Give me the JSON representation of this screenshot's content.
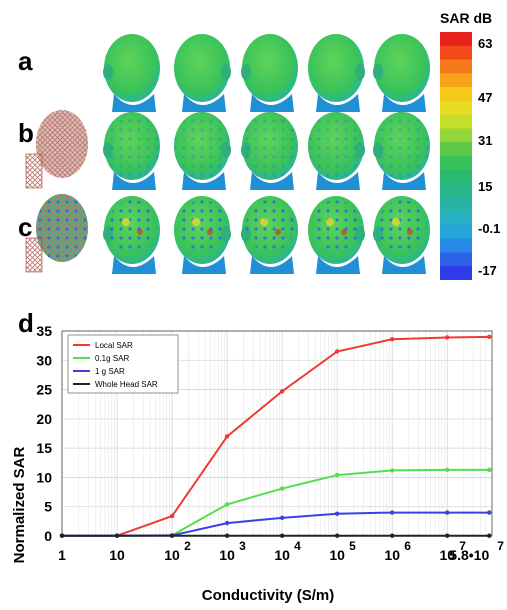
{
  "panels": {
    "a": {
      "letter": "a"
    },
    "b": {
      "letter": "b"
    },
    "c": {
      "letter": "c"
    },
    "d": {
      "letter": "d"
    }
  },
  "colorbar": {
    "title": "SAR dB",
    "ticks": [
      "63",
      "47",
      "31",
      "15",
      "-0.1",
      "-17"
    ],
    "colors": [
      "#e8221b",
      "#f04a18",
      "#f5781a",
      "#f8a21a",
      "#f5c81c",
      "#e6dc22",
      "#c2e02a",
      "#95d63a",
      "#5cc84a",
      "#39c25a",
      "#2ab96e",
      "#26b68a",
      "#27b3a6",
      "#26b0c2",
      "#26a6d8",
      "#2788e6",
      "#2c62ea",
      "#2f3be8"
    ]
  },
  "heads": {
    "base_color": "#39c25a",
    "shadow_color": "#1f8fd6",
    "hotspot_color": "#e8d72a"
  },
  "chart_data": {
    "type": "line",
    "xlabel": "Conductivity (S/m)",
    "ylabel": "Normalized SAR",
    "x_scale": "log",
    "x": [
      1,
      10,
      100,
      1000,
      10000,
      100000,
      1000000,
      10000000,
      58000000
    ],
    "x_tick_labels": [
      {
        "base": "1",
        "exp": ""
      },
      {
        "base": "10",
        "exp": ""
      },
      {
        "base": "10",
        "exp": "2"
      },
      {
        "base": "10",
        "exp": "3"
      },
      {
        "base": "10",
        "exp": "4"
      },
      {
        "base": "10",
        "exp": "5"
      },
      {
        "base": "10",
        "exp": "6"
      },
      {
        "base": "10",
        "exp": "7"
      },
      {
        "base": "5.8•10",
        "exp": "7"
      }
    ],
    "ylim": [
      0,
      35
    ],
    "yticks": [
      0,
      5,
      10,
      15,
      20,
      25,
      30,
      35
    ],
    "grid": true,
    "legend_position": "top-left",
    "series": [
      {
        "name": "Local SAR",
        "color": "#ee3b33",
        "values": [
          0.05,
          0.05,
          3.4,
          17.0,
          24.7,
          31.5,
          33.6,
          33.9,
          34.0
        ]
      },
      {
        "name": "0.1g SAR",
        "color": "#52e04a",
        "values": [
          0.05,
          0.05,
          0.1,
          5.4,
          8.1,
          10.4,
          11.2,
          11.3,
          11.3
        ]
      },
      {
        "name": "1 g SAR",
        "color": "#3f3fe0",
        "values": [
          0.05,
          0.05,
          0.1,
          2.2,
          3.1,
          3.8,
          4.0,
          4.0,
          4.0
        ]
      },
      {
        "name": "Whole Head SAR",
        "color": "#222222",
        "values": [
          0.05,
          0.05,
          0.05,
          0.05,
          0.05,
          0.05,
          0.05,
          0.05,
          0.05
        ]
      }
    ]
  }
}
